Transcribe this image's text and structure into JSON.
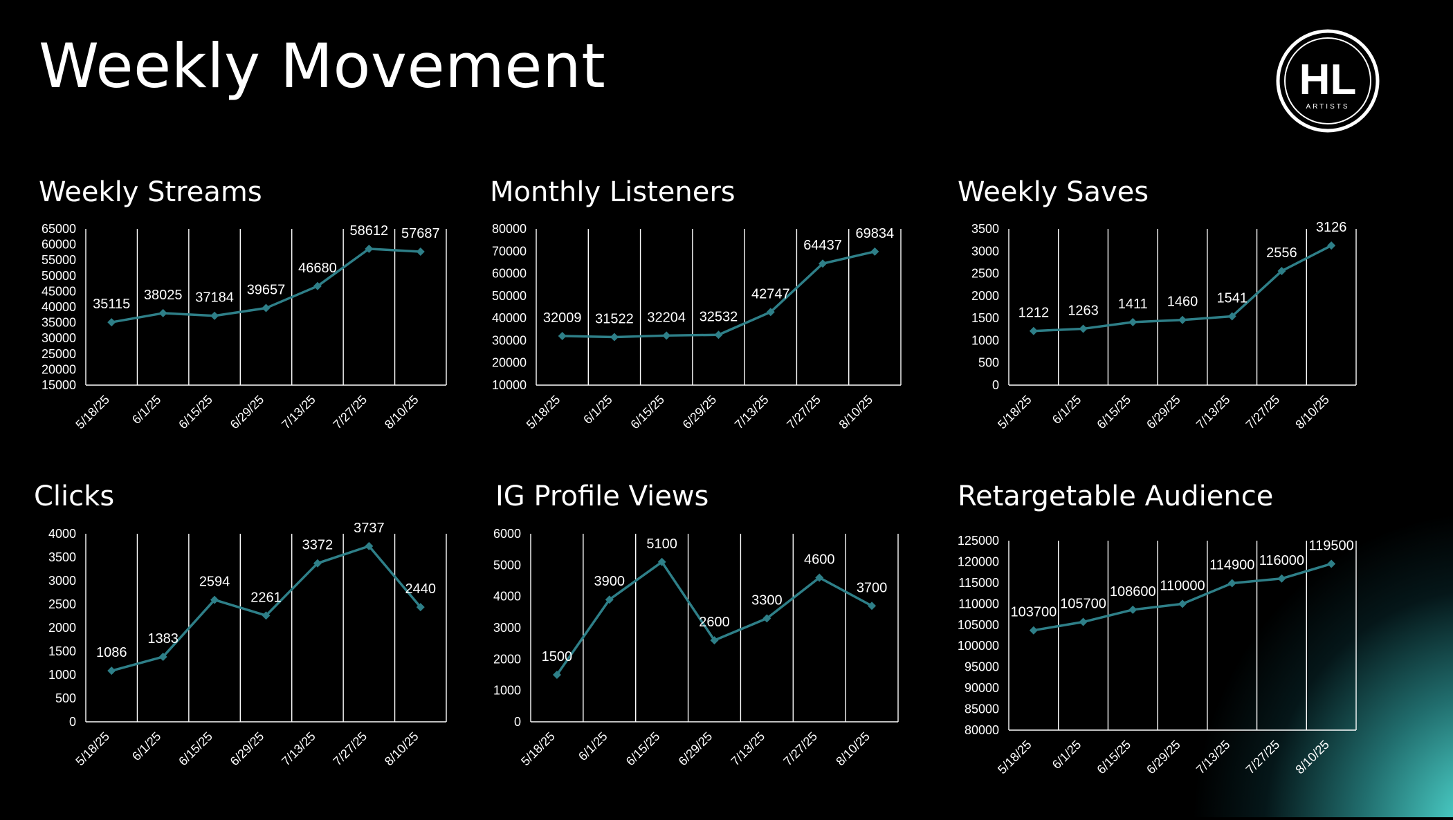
{
  "slide": {
    "title": "Weekly Movement"
  },
  "logo": {
    "main": "HL",
    "sub": "ARTISTS"
  },
  "colors": {
    "line": "#2e7f88",
    "grid": "#ffffff",
    "text": "#ffffff",
    "background": "#000000",
    "glow": "#5af5eb"
  },
  "chart_data": [
    {
      "type": "line",
      "title": "Weekly Streams",
      "categories": [
        "5/18/25",
        "6/1/25",
        "6/15/25",
        "6/29/25",
        "7/13/25",
        "7/27/25",
        "8/10/25"
      ],
      "values": [
        35115,
        38025,
        37184,
        39657,
        46680,
        58612,
        57687
      ],
      "ylim": [
        15000,
        65000
      ],
      "ystep": 5000,
      "grid": "vertical"
    },
    {
      "type": "line",
      "title": "Monthly Listeners",
      "categories": [
        "5/18/25",
        "6/1/25",
        "6/15/25",
        "6/29/25",
        "7/13/25",
        "7/27/25",
        "8/10/25"
      ],
      "values": [
        32009,
        31522,
        32204,
        32532,
        42747,
        64437,
        69834
      ],
      "ylim": [
        10000,
        80000
      ],
      "ystep": 10000,
      "grid": "vertical"
    },
    {
      "type": "line",
      "title": "Weekly Saves",
      "categories": [
        "5/18/25",
        "6/1/25",
        "6/15/25",
        "6/29/25",
        "7/13/25",
        "7/27/25",
        "8/10/25"
      ],
      "values": [
        1212,
        1263,
        1411,
        1460,
        1541,
        2556,
        3126
      ],
      "ylim": [
        0,
        3500
      ],
      "ystep": 500,
      "grid": "vertical"
    },
    {
      "type": "line",
      "title": "Clicks",
      "categories": [
        "5/18/25",
        "6/1/25",
        "6/15/25",
        "6/29/25",
        "7/13/25",
        "7/27/25",
        "8/10/25"
      ],
      "values": [
        1086,
        1383,
        2594,
        2261,
        3372,
        3737,
        2440
      ],
      "ylim": [
        0,
        4000
      ],
      "ystep": 500,
      "grid": "vertical"
    },
    {
      "type": "line",
      "title": "IG Profile Views",
      "categories": [
        "5/18/25",
        "6/1/25",
        "6/15/25",
        "6/29/25",
        "7/13/25",
        "7/27/25",
        "8/10/25"
      ],
      "values": [
        1500,
        3900,
        5100,
        2600,
        3300,
        4600,
        3700
      ],
      "ylim": [
        0,
        6000
      ],
      "ystep": 1000,
      "grid": "vertical"
    },
    {
      "type": "line",
      "title": "Retargetable Audience",
      "categories": [
        "5/18/25",
        "6/1/25",
        "6/15/25",
        "6/29/25",
        "7/13/25",
        "7/27/25",
        "8/10/25"
      ],
      "values": [
        103700,
        105700,
        108600,
        110000,
        114900,
        116000,
        119500
      ],
      "ylim": [
        80000,
        125000
      ],
      "ystep": 5000,
      "grid": "vertical"
    }
  ]
}
